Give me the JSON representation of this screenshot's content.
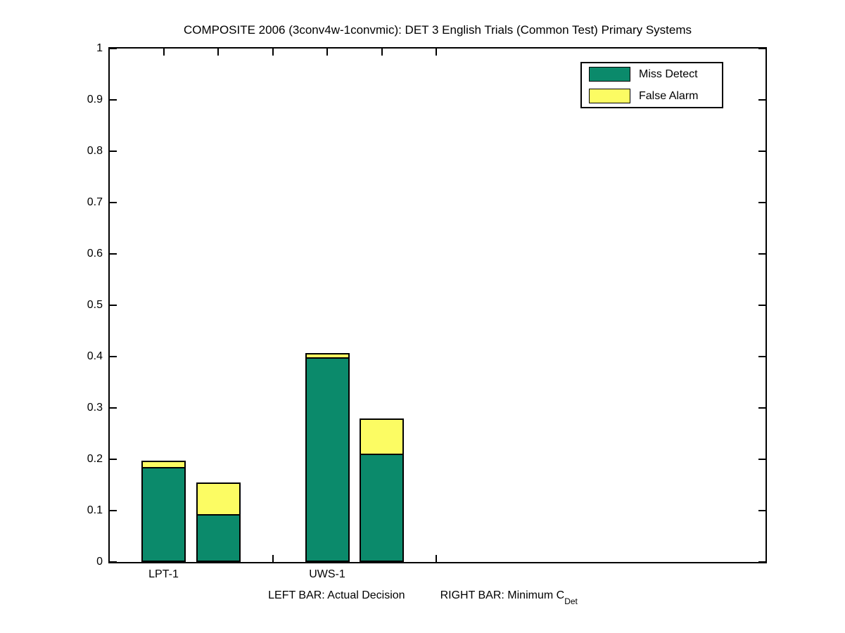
{
  "title": "COMPOSITE 2006 (3conv4w-1convmic): DET 3 English Trials (Common Test) Primary Systems",
  "legend": {
    "items": [
      {
        "label": "Miss Detect",
        "color": "#0B8A6B"
      },
      {
        "label": "False Alarm",
        "color": "#FCFC63"
      }
    ]
  },
  "footnote": {
    "left_bar": "LEFT BAR: Actual Decision",
    "right_bar_prefix": "RIGHT BAR: Minimum C",
    "right_bar_sub": "Det"
  },
  "chart_data": {
    "type": "bar",
    "stacked": true,
    "title": "COMPOSITE 2006 (3conv4w-1convmic): DET 3 English Trials (Common Test) Primary Systems",
    "ylim": [
      0,
      1
    ],
    "ytick_labels": [
      "0",
      "0.1",
      "0.2",
      "0.3",
      "0.4",
      "0.5",
      "0.6",
      "0.7",
      "0.8",
      "0.9",
      "1"
    ],
    "grid": false,
    "legend_position": "top-right",
    "legend_entries": [
      "Miss Detect",
      "False Alarm"
    ],
    "colors": {
      "miss_detect": "#0B8A6B",
      "false_alarm": "#FCFC63"
    },
    "bar_meaning": {
      "left_bar": "Actual Decision",
      "right_bar": "Minimum CDet"
    },
    "x_slots": {
      "count": 6,
      "group_bar_slots": [
        [
          1,
          2
        ],
        [
          4,
          5
        ]
      ],
      "label_slots": [
        1,
        4
      ]
    },
    "groups": [
      {
        "label": "LPT-1",
        "bars": [
          {
            "kind": "actual_decision",
            "miss_detect": 0.185,
            "false_alarm": 0.013
          },
          {
            "kind": "minimum_cdet",
            "miss_detect": 0.093,
            "false_alarm": 0.062
          }
        ]
      },
      {
        "label": "UWS-1",
        "bars": [
          {
            "kind": "actual_decision",
            "miss_detect": 0.398,
            "false_alarm": 0.008
          },
          {
            "kind": "minimum_cdet",
            "miss_detect": 0.211,
            "false_alarm": 0.069
          }
        ]
      }
    ]
  }
}
